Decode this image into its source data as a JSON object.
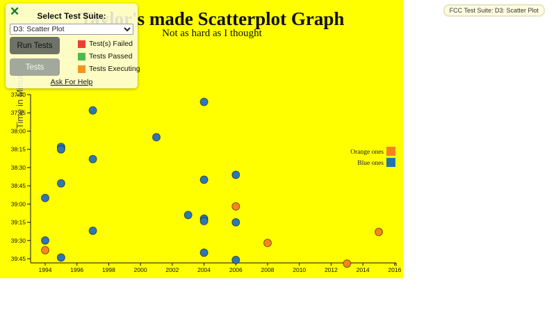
{
  "badge": {
    "text": "FCC Test Suite: D3: Scatter Plot"
  },
  "test_panel": {
    "close_glyph": "✕",
    "title": "Select Test Suite:",
    "suite_selected": "D3: Scatter Plot",
    "run_tests_label": "Run Tests",
    "tests_label": "Tests",
    "status_legend": [
      {
        "label": "Test(s) Failed",
        "color": "#ee3e32"
      },
      {
        "label": "Tests Passed",
        "color": "#4cbb4c"
      },
      {
        "label": "Tests Executing",
        "color": "#f7941e"
      }
    ],
    "help_link": "Ask For Help"
  },
  "chart_data": {
    "type": "scatter",
    "title": "Taylor's made Scatterplot Graph",
    "subtitle": "Not as hard as I thought",
    "ylabel": "Time in Minutes",
    "background_color": "#ffff00",
    "axis_color": "#111111",
    "grid": false,
    "x_ticks": [
      1994,
      1996,
      1998,
      2000,
      2002,
      2004,
      2006,
      2008,
      2010,
      2012,
      2014,
      2016
    ],
    "y_ticks": [
      "37:30",
      "37:45",
      "38:00",
      "38:15",
      "38:30",
      "38:45",
      "39:00",
      "39:15",
      "39:30",
      "39:45"
    ],
    "xlim": [
      1993.1,
      2016.1
    ],
    "ylim": [
      "37:30",
      "39:45"
    ],
    "legend": {
      "position": "right",
      "entries": [
        {
          "label": "Orange ones",
          "color": "#f5821f"
        },
        {
          "label": "Blue ones",
          "color": "#2173b4"
        }
      ]
    },
    "series": [
      {
        "name": "Blue ones",
        "color": "#2e77b5",
        "points": [
          {
            "year": 1994,
            "time": "38:55"
          },
          {
            "year": 1994,
            "time": "39:30"
          },
          {
            "year": 1995,
            "time": "38:13"
          },
          {
            "year": 1995,
            "time": "38:15"
          },
          {
            "year": 1995,
            "time": "38:43"
          },
          {
            "year": 1995,
            "time": "39:44"
          },
          {
            "year": 1997,
            "time": "37:43"
          },
          {
            "year": 1997,
            "time": "38:23"
          },
          {
            "year": 1997,
            "time": "39:22"
          },
          {
            "year": 2001,
            "time": "38:05"
          },
          {
            "year": 2003,
            "time": "39:09"
          },
          {
            "year": 2004,
            "time": "37:36"
          },
          {
            "year": 2004,
            "time": "38:40"
          },
          {
            "year": 2004,
            "time": "39:12"
          },
          {
            "year": 2004,
            "time": "39:14"
          },
          {
            "year": 2004,
            "time": "39:40"
          },
          {
            "year": 2006,
            "time": "38:36"
          },
          {
            "year": 2006,
            "time": "39:15"
          },
          {
            "year": 2006,
            "time": "39:46"
          }
        ]
      },
      {
        "name": "Orange ones",
        "color": "#f5861f",
        "points": [
          {
            "year": 1994,
            "time": "39:38"
          },
          {
            "year": 2006,
            "time": "39:02"
          },
          {
            "year": 2008,
            "time": "39:32"
          },
          {
            "year": 2013,
            "time": "39:49"
          },
          {
            "year": 2015,
            "time": "39:23"
          }
        ]
      }
    ]
  }
}
